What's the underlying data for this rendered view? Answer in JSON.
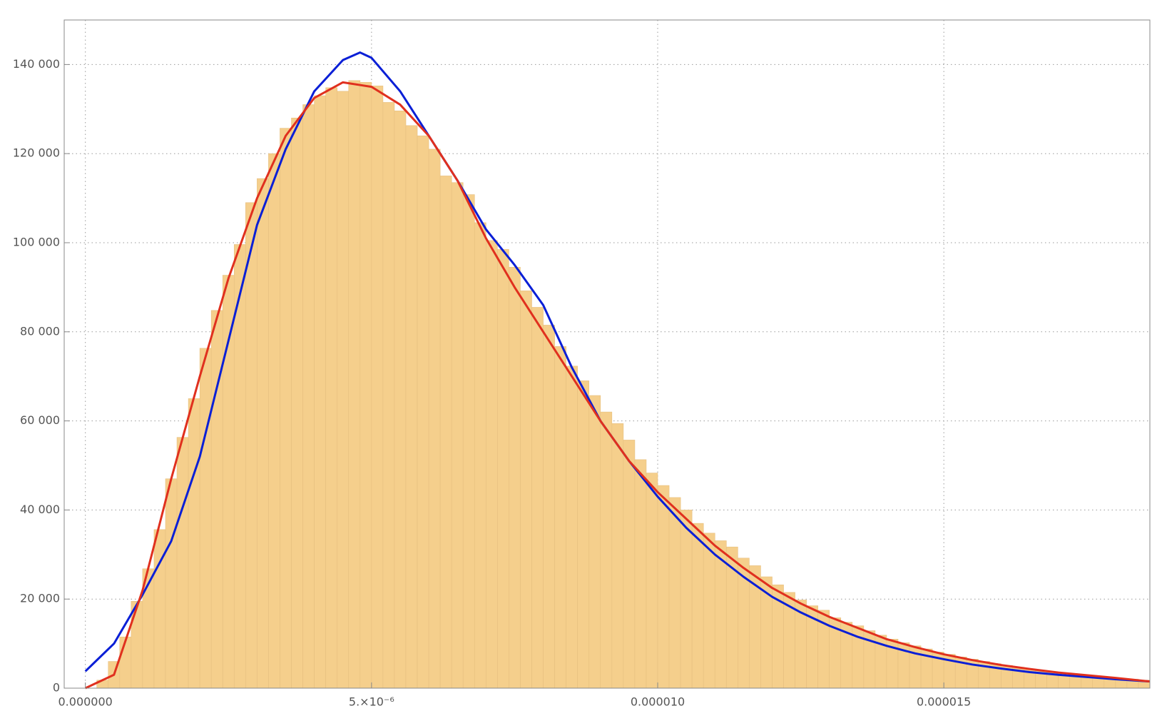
{
  "chart_data": {
    "type": "histogram",
    "color": "#f5cf8c",
    "bins": [
      2e-07,
      4e-07,
      6e-07,
      8e-07,
      1e-06,
      1.2e-06,
      1.4e-06,
      1.6e-06,
      1.8e-06,
      2e-06,
      2.2e-06,
      2.4e-06,
      2.6e-06,
      2.8e-06,
      3e-06,
      3.2e-06,
      3.4e-06,
      3.6e-06,
      3.8e-06,
      4e-06,
      4.2e-06,
      4.4e-06,
      4.6e-06,
      4.8e-06,
      5e-06,
      5.2e-06,
      5.4e-06,
      5.6e-06,
      5.8e-06,
      6e-06,
      6.2e-06,
      6.4e-06,
      6.6e-06,
      6.8e-06,
      7e-06,
      7.2e-06,
      7.4e-06,
      7.6e-06,
      7.8e-06,
      8e-06,
      8.2e-06,
      8.4e-06,
      8.6e-06,
      8.8e-06,
      9e-06,
      9.2e-06,
      9.4e-06,
      9.6e-06,
      9.8e-06,
      1e-05,
      1.02e-05,
      1.04e-05,
      1.06e-05,
      1.08e-05,
      1.1e-05,
      1.12e-05,
      1.14e-05,
      1.16e-05,
      1.18e-05,
      1.2e-05,
      1.22e-05,
      1.24e-05,
      1.26e-05,
      1.28e-05,
      1.3e-05,
      1.32e-05,
      1.34e-05,
      1.36e-05,
      1.38e-05,
      1.4e-05,
      1.42e-05,
      1.44e-05,
      1.46e-05,
      1.48e-05,
      1.5e-05,
      1.52e-05,
      1.54e-05,
      1.56e-05,
      1.58e-05,
      1.6e-05,
      1.62e-05,
      1.64e-05,
      1.66e-05,
      1.68e-05,
      1.7e-05,
      1.72e-05,
      1.74e-05,
      1.76e-05,
      1.78e-05,
      1.8e-05,
      1.82e-05,
      1.84e-05,
      1.86e-05
    ],
    "values": [
      1800,
      6000,
      11500,
      19500,
      26800,
      35600,
      47000,
      56300,
      65000,
      76300,
      84800,
      92700,
      99600,
      109000,
      114400,
      120000,
      125700,
      128000,
      131000,
      133000,
      134800,
      134000,
      136400,
      136000,
      135200,
      131500,
      129600,
      126300,
      124000,
      121000,
      115000,
      113500,
      110800,
      104500,
      100500,
      98500,
      94500,
      89200,
      85500,
      81500,
      76700,
      72300,
      69000,
      65700,
      62000,
      59400,
      55700,
      51300,
      48300,
      45500,
      42800,
      40000,
      37000,
      34800,
      33100,
      31700,
      29200,
      27500,
      25000,
      23200,
      21500,
      19800,
      18500,
      17500,
      15800,
      14800,
      14000,
      12900,
      11900,
      11000,
      10200,
      9500,
      8800,
      8100,
      7600,
      7000,
      6500,
      6000,
      5500,
      5100,
      4700,
      4300,
      3900,
      3700,
      3400,
      3100,
      2800,
      2600,
      2400,
      2200,
      2000,
      1800
    ],
    "series": [
      {
        "type": "line",
        "color": "#0a1fd6",
        "x": [
          0,
          5e-07,
          1e-06,
          1.5e-06,
          2e-06,
          2.5e-06,
          3e-06,
          3.5e-06,
          4e-06,
          4.5e-06,
          4.8e-06,
          5e-06,
          5.5e-06,
          6e-06,
          6.5e-06,
          7e-06,
          7.5e-06,
          8e-06,
          8.5e-06,
          9e-06,
          9.5e-06,
          1e-05,
          1.05e-05,
          1.1e-05,
          1.15e-05,
          1.2e-05,
          1.25e-05,
          1.3e-05,
          1.35e-05,
          1.4e-05,
          1.45e-05,
          1.5e-05,
          1.55e-05,
          1.6e-05,
          1.65e-05,
          1.7e-05,
          1.75e-05,
          1.8e-05,
          1.86e-05
        ],
        "values": [
          3800,
          10000,
          21000,
          33000,
          52000,
          78000,
          104000,
          121000,
          134000,
          141000,
          142700,
          141500,
          134000,
          124000,
          114000,
          103000,
          95000,
          86000,
          72000,
          60000,
          51000,
          43000,
          36000,
          30000,
          25000,
          20500,
          17000,
          14000,
          11500,
          9500,
          7800,
          6500,
          5300,
          4400,
          3600,
          3000,
          2500,
          2000,
          1500
        ]
      },
      {
        "type": "line",
        "color": "#e0301e",
        "x": [
          0,
          5e-07,
          1e-06,
          1.5e-06,
          2e-06,
          2.5e-06,
          3e-06,
          3.5e-06,
          4e-06,
          4.5e-06,
          5e-06,
          5.5e-06,
          6e-06,
          6.5e-06,
          7e-06,
          7.5e-06,
          8e-06,
          8.5e-06,
          9e-06,
          9.5e-06,
          1e-05,
          1.05e-05,
          1.1e-05,
          1.15e-05,
          1.2e-05,
          1.25e-05,
          1.3e-05,
          1.35e-05,
          1.4e-05,
          1.45e-05,
          1.5e-05,
          1.55e-05,
          1.6e-05,
          1.65e-05,
          1.7e-05,
          1.75e-05,
          1.8e-05,
          1.86e-05
        ],
        "values": [
          0,
          3000,
          22000,
          47000,
          70000,
          92000,
          110000,
          124000,
          132500,
          136000,
          135000,
          131000,
          124000,
          114000,
          101000,
          90000,
          80000,
          70000,
          60000,
          51000,
          44000,
          38000,
          32000,
          27000,
          22500,
          19000,
          16000,
          13500,
          11000,
          9200,
          7600,
          6300,
          5200,
          4300,
          3500,
          2900,
          2300,
          1500
        ]
      }
    ],
    "xlim": [
      -3.7e-07,
      1.86e-05
    ],
    "ylim": [
      0,
      150000
    ],
    "xticks": [
      {
        "value": 0,
        "label": "0.000000"
      },
      {
        "value": 5e-06,
        "label": "5.×10⁻⁶"
      },
      {
        "value": 1e-05,
        "label": "0.000010"
      },
      {
        "value": 1.5e-05,
        "label": "0.000015"
      }
    ],
    "yticks": [
      0,
      {
        "value": 20000,
        "label": "20 000"
      },
      {
        "value": 40000,
        "label": "40 000"
      },
      {
        "value": 60000,
        "label": "60 000"
      },
      {
        "value": 80000,
        "label": "80 000"
      },
      {
        "value": 100000,
        "label": "100 000"
      },
      {
        "value": 120000,
        "label": "120 000"
      },
      {
        "value": 140000,
        "label": "140 000"
      }
    ],
    "grid": true
  }
}
